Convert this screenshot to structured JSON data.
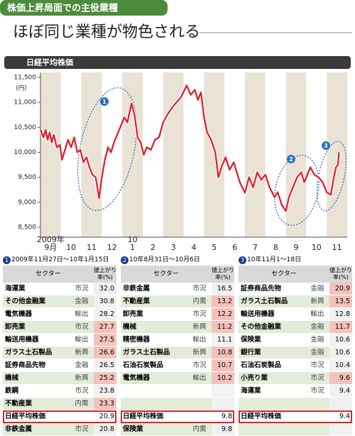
{
  "header": {
    "tag": "株価上昇局面での主役業種",
    "title": "ほぼ同じ業種が物色される"
  },
  "chart_data": {
    "type": "line",
    "title": "日経平均株価",
    "y_unit": "(円)",
    "x": [
      0,
      0.15,
      0.25,
      0.35,
      0.45,
      0.55,
      0.65,
      0.8,
      0.95,
      1.05,
      1.2,
      1.35,
      1.5,
      1.65,
      1.8,
      1.95,
      2.1,
      2.25,
      2.4,
      2.55,
      2.7,
      2.87,
      3.0,
      3.15,
      3.3,
      3.45,
      3.6,
      3.8,
      3.95,
      4.1,
      4.25,
      4.45,
      4.6,
      4.75,
      4.9,
      5.05,
      5.2,
      5.4,
      5.6,
      5.8,
      6.0,
      6.2,
      6.45,
      6.65,
      6.85,
      7.05,
      7.15,
      7.35,
      7.55,
      7.7,
      7.85,
      8.0,
      8.15,
      8.35,
      8.55,
      8.7,
      8.85,
      9.05,
      9.25,
      9.45,
      9.6,
      9.75,
      10.0,
      10.2,
      10.4,
      10.6,
      10.8,
      11.0,
      11.2,
      11.45,
      11.6,
      11.8,
      12.0,
      12.15,
      12.35,
      12.55,
      12.75,
      12.9,
      13.05,
      13.2,
      13.4,
      13.6,
      13.8,
      14.0,
      14.2,
      14.35,
      14.45,
      14.55,
      14.6
    ],
    "series": [
      {
        "color": "#e0202e",
        "values": [
          10450,
          10300,
          10450,
          10250,
          10400,
          10200,
          10350,
          10100,
          10150,
          9850,
          10050,
          10250,
          10100,
          10300,
          10000,
          10050,
          9800,
          9900,
          9700,
          9550,
          9500,
          9080,
          9500,
          9850,
          10100,
          10000,
          10200,
          10400,
          10550,
          10700,
          10600,
          10980,
          10750,
          10300,
          10200,
          9950,
          10100,
          10050,
          10250,
          10300,
          10600,
          10750,
          10900,
          11000,
          11090,
          11250,
          11340,
          11150,
          11250,
          11050,
          11200,
          10700,
          10400,
          10250,
          10000,
          9500,
          9700,
          9900,
          9650,
          9800,
          9600,
          9400,
          9190,
          9500,
          9300,
          9600,
          9450,
          9550,
          9300,
          9100,
          9200,
          8950,
          8824,
          9100,
          9300,
          9500,
          9600,
          9400,
          9550,
          9700,
          9550,
          9500,
          9400,
          9200,
          9150,
          9500,
          9700,
          9750,
          10000
        ]
      }
    ],
    "xlim": [
      0,
      15
    ],
    "xticks": [
      {
        "value": 0.5,
        "label": "9月"
      },
      {
        "value": 1.5,
        "label": "10"
      },
      {
        "value": 2.5,
        "label": "11"
      },
      {
        "value": 3.5,
        "label": "12"
      },
      {
        "value": 4.5,
        "label": "1"
      },
      {
        "value": 5.5,
        "label": "2"
      },
      {
        "value": 6.5,
        "label": "3"
      },
      {
        "value": 7.5,
        "label": "4"
      },
      {
        "value": 8.5,
        "label": "5"
      },
      {
        "value": 9.5,
        "label": "6"
      },
      {
        "value": 10.5,
        "label": "7"
      },
      {
        "value": 11.5,
        "label": "8"
      },
      {
        "value": 12.5,
        "label": "9"
      },
      {
        "value": 13.5,
        "label": "10"
      },
      {
        "value": 14.5,
        "label": "11"
      }
    ],
    "x_year_labels": [
      {
        "value": 0.5,
        "label": "2009年"
      },
      {
        "value": 4.5,
        "label": "10"
      }
    ],
    "ylim": [
      8500,
      11500
    ],
    "yticks": [
      {
        "value": 8500,
        "label": "8,500"
      },
      {
        "value": 9000,
        "label": "9,000"
      },
      {
        "value": 9500,
        "label": "9,500"
      },
      {
        "value": 10000,
        "label": "10,000"
      },
      {
        "value": 10500,
        "label": "10,500"
      },
      {
        "value": 11000,
        "label": "11,000"
      },
      {
        "value": 11500,
        "label": "11,500"
      }
    ],
    "annotations": [
      "1",
      "2",
      "3"
    ]
  },
  "tables": [
    {
      "number": "1",
      "period": "2009年11月27日〜10年1月15日",
      "header": [
        "セクター",
        "値上がり率(%)"
      ],
      "rows": [
        {
          "sector": "海運業",
          "type": "市況",
          "value": "32.0",
          "highlight": false
        },
        {
          "sector": "その他金融業",
          "type": "金融",
          "value": "30.8",
          "highlight": false
        },
        {
          "sector": "電気機器",
          "type": "輸出",
          "value": "28.2",
          "highlight": false
        },
        {
          "sector": "卸売業",
          "type": "市況",
          "value": "27.7",
          "highlight": true
        },
        {
          "sector": "輸送用機器",
          "type": "輸出",
          "value": "27.5",
          "highlight": true
        },
        {
          "sector": "ガラス土石製品",
          "type": "新興",
          "value": "26.6",
          "highlight": true
        },
        {
          "sector": "証券商品先物",
          "type": "金融",
          "value": "26.5",
          "highlight": false
        },
        {
          "sector": "機械",
          "type": "新興",
          "value": "25.2",
          "highlight": true
        },
        {
          "sector": "鉄鋼",
          "type": "市況",
          "value": "23.8",
          "highlight": false
        },
        {
          "sector": "不動産業",
          "type": "内需",
          "value": "23.3",
          "highlight": true
        }
      ],
      "nikkei": {
        "sector": "日経平均株価",
        "value": "20.9"
      },
      "footer": {
        "sector": "非鉄金属",
        "type": "市況",
        "value": "20.8"
      }
    },
    {
      "number": "2",
      "period": "10年8月31日〜10月6日",
      "header": [
        "セクター",
        "値上がり率(%)"
      ],
      "rows": [
        {
          "sector": "非鉄金属",
          "type": "市況",
          "value": "16.5",
          "highlight": false
        },
        {
          "sector": "不動産業",
          "type": "内需",
          "value": "13.2",
          "highlight": true
        },
        {
          "sector": "卸売業",
          "type": "市況",
          "value": "12.2",
          "highlight": true
        },
        {
          "sector": "機械",
          "type": "新興",
          "value": "11.2",
          "highlight": true
        },
        {
          "sector": "精密機器",
          "type": "輸出",
          "value": "11.1",
          "highlight": false
        },
        {
          "sector": "ガラス土石製品",
          "type": "新興",
          "value": "10.8",
          "highlight": true
        },
        {
          "sector": "石油石炭製品",
          "type": "市況",
          "value": "10.7",
          "highlight": true
        },
        {
          "sector": "電気機器",
          "type": "輸出",
          "value": "10.2",
          "highlight": true
        }
      ],
      "nikkei": {
        "sector": "日経平均株価",
        "value": "9.8"
      },
      "footer": {
        "sector": "保険業",
        "type": "内需",
        "value": "9.8"
      }
    },
    {
      "number": "3",
      "period": "10年11月1〜18日",
      "header": [
        "セクター",
        "値上がり率(%)"
      ],
      "rows": [
        {
          "sector": "証券商品先物",
          "type": "金融",
          "value": "20.9",
          "highlight": true
        },
        {
          "sector": "ガラス土石製品",
          "type": "新興",
          "value": "13.5",
          "highlight": true
        },
        {
          "sector": "輸送用機器",
          "type": "輸出",
          "value": "12.8",
          "highlight": false
        },
        {
          "sector": "その他金融業",
          "type": "金融",
          "value": "11.7",
          "highlight": true
        },
        {
          "sector": "保険業",
          "type": "金融",
          "value": "10.6",
          "highlight": false
        },
        {
          "sector": "銀行業",
          "type": "金融",
          "value": "10.6",
          "highlight": false
        },
        {
          "sector": "石油石炭製品",
          "type": "市況",
          "value": "10.4",
          "highlight": false
        },
        {
          "sector": "小売り業",
          "type": "市況",
          "value": "9.6",
          "highlight": true
        },
        {
          "sector": "海運業",
          "type": "市況",
          "value": "9.4",
          "highlight": false
        }
      ],
      "nikkei": {
        "sector": "日経平均株価",
        "value": "9.4"
      }
    }
  ]
}
